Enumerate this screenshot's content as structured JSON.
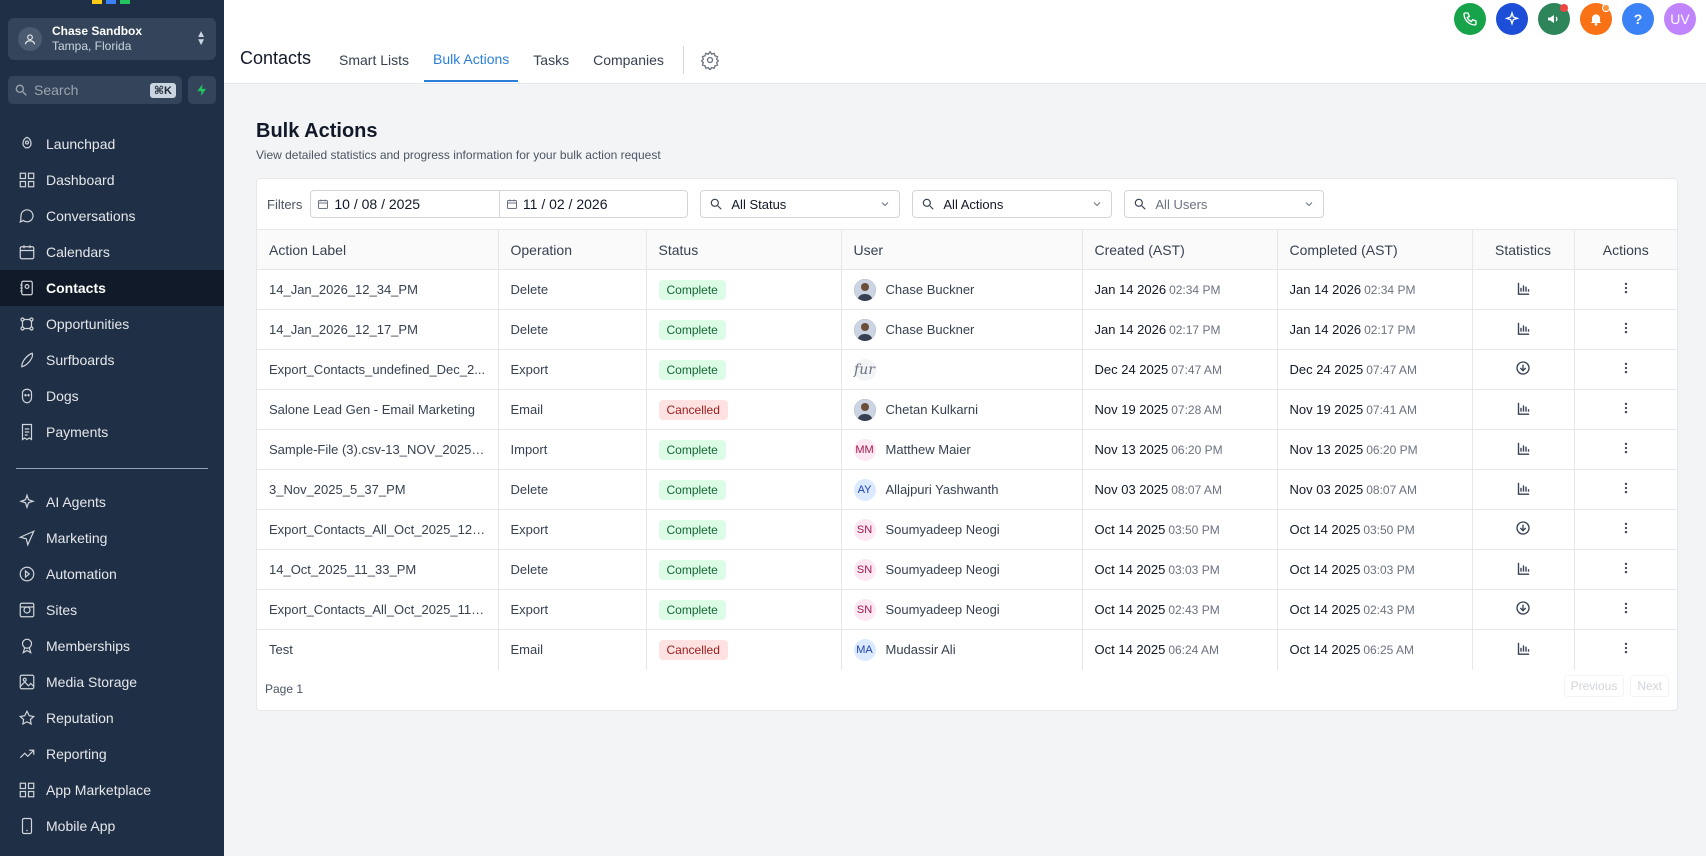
{
  "colors": {
    "sidebar": "#1f2f45",
    "accent": "#2b7fd6"
  },
  "account": {
    "name": "Chase Sandbox",
    "location": "Tampa, Florida"
  },
  "search": {
    "placeholder": "Search",
    "shortcut": "⌘K"
  },
  "sidebar": {
    "items": [
      {
        "label": "Launchpad",
        "icon": "rocket-icon"
      },
      {
        "label": "Dashboard",
        "icon": "grid-icon"
      },
      {
        "label": "Conversations",
        "icon": "chat-icon"
      },
      {
        "label": "Calendars",
        "icon": "calendar-icon"
      },
      {
        "label": "Contacts",
        "icon": "contacts-icon",
        "active": true
      },
      {
        "label": "Opportunities",
        "icon": "funnel-icon"
      },
      {
        "label": "Surfboards",
        "icon": "surfboard-icon"
      },
      {
        "label": "Dogs",
        "icon": "dog-icon"
      },
      {
        "label": "Payments",
        "icon": "receipt-icon"
      }
    ],
    "items2": [
      {
        "label": "AI Agents",
        "icon": "sparkle-icon"
      },
      {
        "label": "Marketing",
        "icon": "send-icon"
      },
      {
        "label": "Automation",
        "icon": "automation-icon"
      },
      {
        "label": "Sites",
        "icon": "globe-icon"
      },
      {
        "label": "Memberships",
        "icon": "award-icon"
      },
      {
        "label": "Media Storage",
        "icon": "image-icon"
      },
      {
        "label": "Reputation",
        "icon": "star-icon"
      },
      {
        "label": "Reporting",
        "icon": "trend-icon"
      },
      {
        "label": "App Marketplace",
        "icon": "apps-icon"
      },
      {
        "label": "Mobile App",
        "icon": "phone-icon"
      }
    ]
  },
  "header": {
    "title": "Contacts",
    "tabs": [
      "Smart Lists",
      "Bulk Actions",
      "Tasks",
      "Companies"
    ],
    "active_tab": "Bulk Actions",
    "user_initials": "UV"
  },
  "main": {
    "title": "Bulk Actions",
    "subtitle": "View detailed statistics and progress information for your bulk action request",
    "filters": {
      "label": "Filters",
      "date_from": "10 / 08 / 2025",
      "date_to": "11 / 02 / 2026",
      "status": "All Status",
      "actions": "All Actions",
      "users": "All Users"
    },
    "columns": [
      "Action Label",
      "Operation",
      "Status",
      "User",
      "Created (AST)",
      "Completed (AST)",
      "Statistics",
      "Actions"
    ],
    "rows": [
      {
        "label": "14_Jan_2026_12_34_PM",
        "op": "Delete",
        "status": "Complete",
        "user": "Chase Buckner",
        "avatar": "photo",
        "cdate": "Jan 14 2026",
        "ctime": "02:34 PM",
        "ddate": "Jan 14 2026",
        "dtime": "02:34 PM",
        "stat": "chart"
      },
      {
        "label": "14_Jan_2026_12_17_PM",
        "op": "Delete",
        "status": "Complete",
        "user": "Chase Buckner",
        "avatar": "photo",
        "cdate": "Jan 14 2026",
        "ctime": "02:17 PM",
        "ddate": "Jan 14 2026",
        "dtime": "02:17 PM",
        "stat": "chart"
      },
      {
        "label": "Export_Contacts_undefined_Dec_2...",
        "op": "Export",
        "status": "Complete",
        "user": "",
        "avatar": "fur",
        "avatar_text": "fur",
        "cdate": "Dec 24 2025",
        "ctime": "07:47 AM",
        "ddate": "Dec 24 2025",
        "dtime": "07:47 AM",
        "stat": "download"
      },
      {
        "label": "Salone Lead Gen - Email Marketing",
        "op": "Email",
        "status": "Cancelled",
        "user": "Chetan Kulkarni",
        "avatar": "photo",
        "cdate": "Nov 19 2025",
        "ctime": "07:28 AM",
        "ddate": "Nov 19 2025",
        "dtime": "07:41 AM",
        "stat": "chart"
      },
      {
        "label": "Sample-File (3).csv-13_NOV_2025_...",
        "op": "Import",
        "status": "Complete",
        "user": "Matthew Maier",
        "avatar": "MM",
        "cdate": "Nov 13 2025",
        "ctime": "06:20 PM",
        "ddate": "Nov 13 2025",
        "dtime": "06:20 PM",
        "stat": "chart"
      },
      {
        "label": "3_Nov_2025_5_37_PM",
        "op": "Delete",
        "status": "Complete",
        "user": "Allajpuri Yashwanth",
        "avatar": "AY",
        "cdate": "Nov 03 2025",
        "ctime": "08:07 AM",
        "ddate": "Nov 03 2025",
        "dtime": "08:07 AM",
        "stat": "chart"
      },
      {
        "label": "Export_Contacts_All_Oct_2025_12_...",
        "op": "Export",
        "status": "Complete",
        "user": "Soumyadeep Neogi",
        "avatar": "SN",
        "cdate": "Oct 14 2025",
        "ctime": "03:50 PM",
        "ddate": "Oct 14 2025",
        "dtime": "03:50 PM",
        "stat": "download"
      },
      {
        "label": "14_Oct_2025_11_33_PM",
        "op": "Delete",
        "status": "Complete",
        "user": "Soumyadeep Neogi",
        "avatar": "SN",
        "cdate": "Oct 14 2025",
        "ctime": "03:03 PM",
        "ddate": "Oct 14 2025",
        "dtime": "03:03 PM",
        "stat": "chart"
      },
      {
        "label": "Export_Contacts_All_Oct_2025_11_1...",
        "op": "Export",
        "status": "Complete",
        "user": "Soumyadeep Neogi",
        "avatar": "SN",
        "cdate": "Oct 14 2025",
        "ctime": "02:43 PM",
        "ddate": "Oct 14 2025",
        "dtime": "02:43 PM",
        "stat": "download"
      },
      {
        "label": "Test",
        "op": "Email",
        "status": "Cancelled",
        "user": "Mudassir Ali",
        "avatar": "MA",
        "cdate": "Oct 14 2025",
        "ctime": "06:24 AM",
        "ddate": "Oct 14 2025",
        "dtime": "06:25 AM",
        "stat": "chart"
      }
    ],
    "pagination": {
      "page": "Page 1",
      "previous": "Previous",
      "next": "Next"
    }
  }
}
